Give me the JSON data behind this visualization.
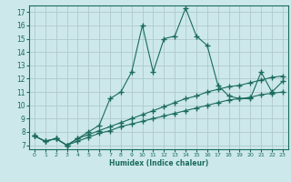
{
  "xlabel": "Humidex (Indice chaleur)",
  "xlim": [
    -0.5,
    23.5
  ],
  "ylim": [
    6.7,
    17.5
  ],
  "yticks": [
    7,
    8,
    9,
    10,
    11,
    12,
    13,
    14,
    15,
    16,
    17
  ],
  "xticks": [
    0,
    1,
    2,
    3,
    4,
    5,
    6,
    7,
    8,
    9,
    10,
    11,
    12,
    13,
    14,
    15,
    16,
    17,
    18,
    19,
    20,
    21,
    22,
    23
  ],
  "bg_color": "#cce8eb",
  "line_color": "#1a6b5a",
  "grid_color": "#b0c8cb",
  "line1_x": [
    0,
    1,
    2,
    3,
    4,
    5,
    6,
    7,
    8,
    9,
    10,
    11,
    12,
    13,
    14,
    15,
    16,
    17,
    18,
    19,
    20,
    21,
    22,
    23
  ],
  "line1_y": [
    7.7,
    7.3,
    7.5,
    7.0,
    7.3,
    7.6,
    7.9,
    8.1,
    8.4,
    8.6,
    8.8,
    9.0,
    9.2,
    9.4,
    9.6,
    9.8,
    10.0,
    10.2,
    10.4,
    10.5,
    10.6,
    10.8,
    10.9,
    11.0
  ],
  "line2_x": [
    0,
    1,
    2,
    3,
    4,
    5,
    6,
    7,
    8,
    9,
    10,
    11,
    12,
    13,
    14,
    15,
    16,
    17,
    18,
    19,
    20,
    21,
    22,
    23
  ],
  "line2_y": [
    7.7,
    7.3,
    7.5,
    7.0,
    7.5,
    7.8,
    8.1,
    8.4,
    8.7,
    9.0,
    9.3,
    9.6,
    9.9,
    10.2,
    10.5,
    10.7,
    11.0,
    11.2,
    11.4,
    11.5,
    11.7,
    11.9,
    12.1,
    12.2
  ],
  "line3_x": [
    0,
    1,
    2,
    3,
    4,
    5,
    6,
    7,
    8,
    9,
    10,
    11,
    12,
    13,
    14,
    15,
    16,
    17,
    18,
    19,
    20,
    21,
    22,
    23
  ],
  "line3_y": [
    7.7,
    7.3,
    7.5,
    7.0,
    7.5,
    8.0,
    8.5,
    10.5,
    11.0,
    12.5,
    16.0,
    12.5,
    15.0,
    15.2,
    17.3,
    15.2,
    14.5,
    11.5,
    10.7,
    10.5,
    10.5,
    12.5,
    11.0,
    11.8
  ]
}
